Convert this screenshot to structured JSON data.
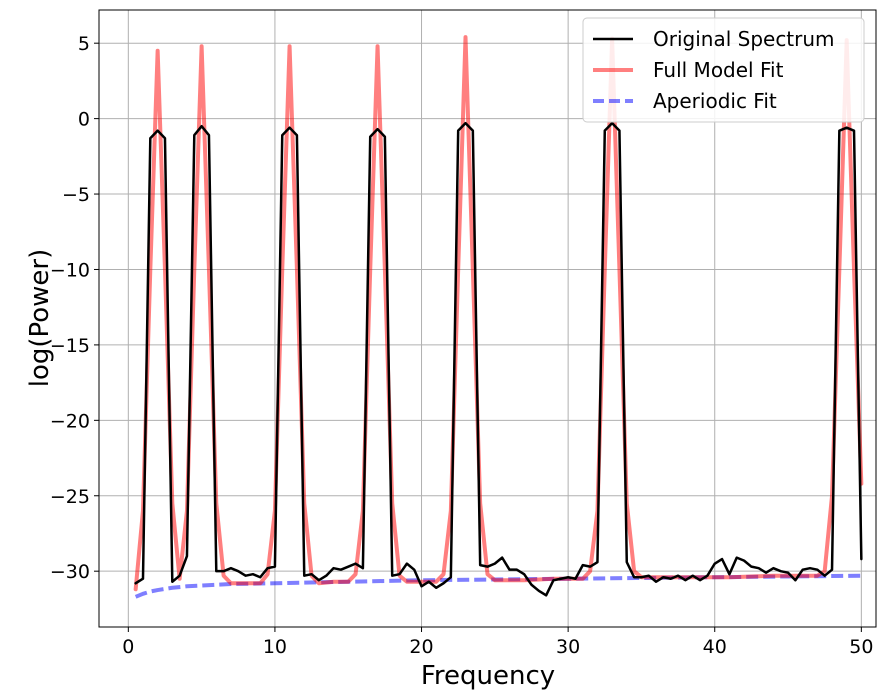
{
  "chart_data": {
    "type": "line",
    "title": "",
    "xlabel": "Frequency",
    "ylabel": "log(Power)",
    "xlim": [
      -2,
      51
    ],
    "ylim": [
      -33.7,
      7.2
    ],
    "xticks": [
      0,
      10,
      20,
      30,
      40,
      50
    ],
    "yticks": [
      5,
      0,
      -5,
      -10,
      -15,
      -20,
      -25,
      -30
    ],
    "ytick_labels": [
      "5",
      "0",
      "−5",
      "−10",
      "−15",
      "−20",
      "−25",
      "−30"
    ],
    "grid": true,
    "legend_position": "top-right",
    "series": [
      {
        "name": "Original Spectrum",
        "color": "#000000",
        "style": "solid",
        "points": [
          [
            0.5,
            -30.8
          ],
          [
            1,
            -30.5
          ],
          [
            1.5,
            -1.3
          ],
          [
            2,
            -0.8
          ],
          [
            2.5,
            -1.3
          ],
          [
            3,
            -30.7
          ],
          [
            3.5,
            -30.3
          ],
          [
            4,
            -29
          ],
          [
            4.5,
            -1.1
          ],
          [
            5,
            -0.5
          ],
          [
            5.5,
            -1.1
          ],
          [
            6,
            -30
          ],
          [
            6.5,
            -30
          ],
          [
            7,
            -29.8
          ],
          [
            7.5,
            -30
          ],
          [
            8,
            -30.3
          ],
          [
            8.5,
            -30.2
          ],
          [
            9,
            -30.4
          ],
          [
            9.5,
            -29.8
          ],
          [
            10,
            -29.7
          ],
          [
            10.5,
            -1.1
          ],
          [
            11,
            -0.6
          ],
          [
            11.5,
            -1.1
          ],
          [
            12,
            -30.3
          ],
          [
            12.5,
            -30.2
          ],
          [
            13,
            -30.6
          ],
          [
            13.5,
            -30.3
          ],
          [
            14,
            -29.8
          ],
          [
            14.5,
            -29.9
          ],
          [
            15,
            -29.7
          ],
          [
            15.5,
            -29.5
          ],
          [
            16,
            -29.8
          ],
          [
            16.5,
            -1.2
          ],
          [
            17,
            -0.7
          ],
          [
            17.5,
            -1.2
          ],
          [
            18,
            -30.3
          ],
          [
            18.5,
            -30.2
          ],
          [
            19,
            -29.5
          ],
          [
            19.5,
            -29.9
          ],
          [
            20,
            -31
          ],
          [
            20.5,
            -30.7
          ],
          [
            21,
            -31.1
          ],
          [
            21.5,
            -30.8
          ],
          [
            22,
            -30.4
          ],
          [
            22.5,
            -0.8
          ],
          [
            23,
            -0.3
          ],
          [
            23.5,
            -0.8
          ],
          [
            24,
            -29.6
          ],
          [
            24.5,
            -29.7
          ],
          [
            25,
            -29.5
          ],
          [
            25.5,
            -29.1
          ],
          [
            26,
            -29.9
          ],
          [
            26.5,
            -29.9
          ],
          [
            27,
            -30.2
          ],
          [
            27.5,
            -30.9
          ],
          [
            28,
            -31.3
          ],
          [
            28.5,
            -31.6
          ],
          [
            29,
            -30.6
          ],
          [
            29.5,
            -30.5
          ],
          [
            30,
            -30.4
          ],
          [
            30.5,
            -30.5
          ],
          [
            31,
            -29.6
          ],
          [
            31.5,
            -29.7
          ],
          [
            32,
            -29.4
          ],
          [
            32.5,
            -0.8
          ],
          [
            33,
            -0.3
          ],
          [
            33.5,
            -0.8
          ],
          [
            34,
            -29.4
          ],
          [
            34.5,
            -30.4
          ],
          [
            35,
            -30.4
          ],
          [
            35.5,
            -30.3
          ],
          [
            36,
            -30.7
          ],
          [
            36.5,
            -30.4
          ],
          [
            37,
            -30.5
          ],
          [
            37.5,
            -30.3
          ],
          [
            38,
            -30.6
          ],
          [
            38.5,
            -30.3
          ],
          [
            39,
            -30.6
          ],
          [
            39.5,
            -30.3
          ],
          [
            40,
            -29.5
          ],
          [
            40.5,
            -29.2
          ],
          [
            41,
            -30.2
          ],
          [
            41.5,
            -29.1
          ],
          [
            42,
            -29.3
          ],
          [
            42.5,
            -29.7
          ],
          [
            43,
            -29.8
          ],
          [
            43.5,
            -30.1
          ],
          [
            44,
            -29.8
          ],
          [
            44.5,
            -30
          ],
          [
            45,
            -30.1
          ],
          [
            45.5,
            -30.6
          ],
          [
            46,
            -29.9
          ],
          [
            46.5,
            -29.8
          ],
          [
            47,
            -29.9
          ],
          [
            47.5,
            -30.3
          ],
          [
            48,
            -29.9
          ],
          [
            48.5,
            -0.8
          ],
          [
            49,
            -0.6
          ],
          [
            49.5,
            -0.8
          ],
          [
            50,
            -29.2
          ]
        ]
      },
      {
        "name": "Full Model Fit",
        "color": "#ff0000",
        "opacity": 0.5,
        "style": "solid",
        "points": [
          [
            0.5,
            -31.2
          ],
          [
            1,
            -26
          ],
          [
            1.5,
            -10
          ],
          [
            2,
            4.5
          ],
          [
            2.5,
            -10
          ],
          [
            3,
            -25.5
          ],
          [
            3.5,
            -30.5
          ],
          [
            4,
            -26
          ],
          [
            4.5,
            -10
          ],
          [
            5,
            4.8
          ],
          [
            5.5,
            -10
          ],
          [
            6,
            -25.5
          ],
          [
            6.5,
            -30.3
          ],
          [
            7,
            -30.8
          ],
          [
            8,
            -30.8
          ],
          [
            9,
            -30.8
          ],
          [
            9.5,
            -30.2
          ],
          [
            10,
            -26
          ],
          [
            10.5,
            -10
          ],
          [
            11,
            4.8
          ],
          [
            11.5,
            -10
          ],
          [
            12,
            -25.5
          ],
          [
            12.5,
            -30.3
          ],
          [
            13,
            -30.8
          ],
          [
            14,
            -30.7
          ],
          [
            15,
            -30.7
          ],
          [
            15.5,
            -30.2
          ],
          [
            16,
            -26
          ],
          [
            16.5,
            -10
          ],
          [
            17,
            4.8
          ],
          [
            17.5,
            -10
          ],
          [
            18,
            -25.5
          ],
          [
            18.5,
            -30.3
          ],
          [
            19,
            -30.7
          ],
          [
            20,
            -30.7
          ],
          [
            21,
            -30.7
          ],
          [
            21.5,
            -30.2
          ],
          [
            22,
            -26
          ],
          [
            22.5,
            -10
          ],
          [
            23,
            5.4
          ],
          [
            23.5,
            -10
          ],
          [
            24,
            -25.5
          ],
          [
            24.5,
            -30.2
          ],
          [
            25,
            -30.6
          ],
          [
            27,
            -30.6
          ],
          [
            29,
            -30.5
          ],
          [
            31,
            -30.5
          ],
          [
            31.5,
            -30
          ],
          [
            32,
            -26
          ],
          [
            32.5,
            -10
          ],
          [
            33,
            5.3
          ],
          [
            33.5,
            -10
          ],
          [
            34,
            -25.5
          ],
          [
            34.5,
            -30
          ],
          [
            35,
            -30.4
          ],
          [
            38,
            -30.4
          ],
          [
            41,
            -30.4
          ],
          [
            44,
            -30.3
          ],
          [
            47,
            -30.3
          ],
          [
            47.5,
            -30
          ],
          [
            48,
            -25
          ],
          [
            48.5,
            -10
          ],
          [
            49,
            5.2
          ],
          [
            49.5,
            -10
          ],
          [
            50,
            -24.2
          ]
        ]
      },
      {
        "name": "Aperiodic Fit",
        "color": "#0000ff",
        "opacity": 0.5,
        "style": "dashed",
        "points": [
          [
            0.5,
            -31.7
          ],
          [
            1,
            -31.5
          ],
          [
            1.5,
            -31.35
          ],
          [
            2,
            -31.25
          ],
          [
            3,
            -31.1
          ],
          [
            4,
            -31
          ],
          [
            5,
            -30.95
          ],
          [
            7,
            -30.85
          ],
          [
            10,
            -30.8
          ],
          [
            15,
            -30.7
          ],
          [
            20,
            -30.6
          ],
          [
            25,
            -30.55
          ],
          [
            30,
            -30.5
          ],
          [
            35,
            -30.45
          ],
          [
            40,
            -30.4
          ],
          [
            45,
            -30.35
          ],
          [
            50,
            -30.3
          ]
        ]
      }
    ]
  }
}
